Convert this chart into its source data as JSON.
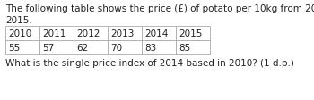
{
  "paragraph1": "The following table shows the price (£) of potato per 10kg from 2010 until",
  "paragraph2": "2015.",
  "years": [
    "2010",
    "2011",
    "2012",
    "2013",
    "2014",
    "2015"
  ],
  "prices": [
    "55",
    "57",
    "62",
    "70",
    "83",
    "85"
  ],
  "question": "What is the single price index of 2014 based in 2010? (1 d.p.)",
  "bg_color": "#ffffff",
  "text_color": "#222222",
  "table_border_color": "#aaaaaa",
  "font_size": 7.5,
  "table_font_size": 7.5
}
